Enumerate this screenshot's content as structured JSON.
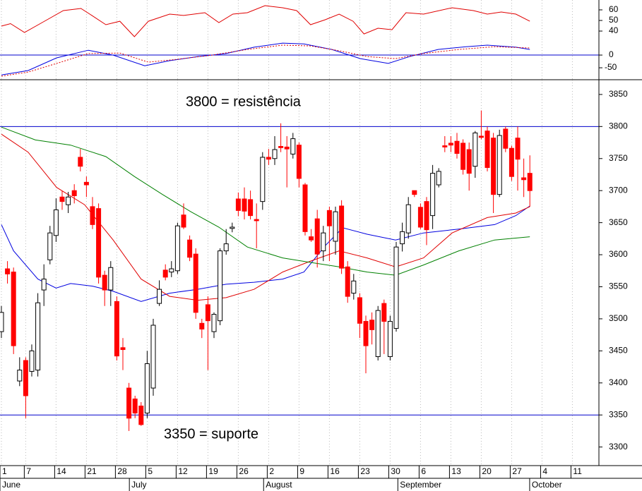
{
  "chart_data": [
    {
      "type": "line",
      "xlim": [
        -0.23,
        98.37
      ],
      "ylim": [
        32.7,
        69.3
      ],
      "yticks": [
        40,
        50,
        60
      ],
      "series": [
        {
          "color": "#e00000",
          "dashed": false,
          "x": [
            0,
            1.5,
            3.8,
            6.7,
            10.2,
            13.1,
            14.9,
            17.2,
            19.5,
            21.9,
            24.2,
            27.7,
            30,
            33.5,
            35.8,
            38.1,
            40.5,
            43.4,
            46.3,
            48.6,
            50.9,
            53.3,
            55.6,
            57.9,
            59.7,
            62,
            64.3,
            66.6,
            69.5,
            74.2,
            77.7,
            80,
            82.3,
            84.7,
            87
          ],
          "values": [
            44.7,
            47,
            38.7,
            48,
            59.3,
            61.3,
            54.7,
            46,
            49.3,
            34.7,
            49.3,
            56,
            54.7,
            57.3,
            48,
            56,
            57.3,
            64,
            62,
            59.3,
            46,
            50.7,
            56,
            49.3,
            37.3,
            42.7,
            41.3,
            57.3,
            56,
            62,
            59.3,
            56,
            58,
            56,
            49.3
          ]
        }
      ]
    },
    {
      "type": "line",
      "xlim": [
        -0.23,
        98.37
      ],
      "ylim": [
        -97,
        64
      ],
      "yticks": [
        -50,
        0
      ],
      "hlines": [
        0
      ],
      "hline_color": "#0000cc",
      "series": [
        {
          "color": "#0000e0",
          "dashed": false,
          "x": [
            0,
            4.4,
            9.1,
            14.3,
            18.4,
            23.6,
            27.7,
            32.3,
            37,
            41.6,
            46.3,
            49.8,
            54.4,
            59.1,
            63.7,
            67.2,
            71.9,
            76.5,
            80,
            84.7,
            87
          ],
          "values": [
            -78,
            -61,
            -11,
            19,
            0,
            -42,
            -22,
            -6,
            6,
            31,
            47,
            44,
            22,
            -14,
            -33,
            -6,
            22,
            33,
            39,
            31,
            22
          ]
        },
        {
          "color": "#e00000",
          "dashed": true,
          "x": [
            0,
            4.4,
            9.1,
            14.3,
            19.5,
            24.2,
            28.8,
            34.7,
            40.5,
            46.3,
            50.9,
            55.6,
            60.2,
            64.9,
            69.5,
            75.3,
            81.2,
            87
          ],
          "values": [
            -83,
            -67,
            -33,
            6,
            8,
            -28,
            -17,
            0,
            22,
            39,
            36,
            17,
            -6,
            -14,
            6,
            22,
            33,
            28
          ]
        }
      ]
    },
    {
      "type": "candlestick",
      "xlim": [
        -0.23,
        98.37
      ],
      "ylim": [
        3271,
        3873
      ],
      "yticks": [
        3300,
        3350,
        3400,
        3450,
        3500,
        3550,
        3600,
        3650,
        3700,
        3750,
        3800,
        3850
      ],
      "xticks": [
        {
          "value": 0,
          "label": "1"
        },
        {
          "value": 4,
          "label": "7"
        },
        {
          "value": 9,
          "label": "14"
        },
        {
          "value": 14,
          "label": "21"
        },
        {
          "value": 19,
          "label": "28"
        },
        {
          "value": 24,
          "label": "5"
        },
        {
          "value": 29,
          "label": "12"
        },
        {
          "value": 34,
          "label": "19"
        },
        {
          "value": 39,
          "label": "26"
        },
        {
          "value": 44,
          "label": "2"
        },
        {
          "value": 49,
          "label": "9"
        },
        {
          "value": 54,
          "label": "16"
        },
        {
          "value": 59,
          "label": "23"
        },
        {
          "value": 64,
          "label": "30"
        },
        {
          "value": 69,
          "label": "6"
        },
        {
          "value": 74,
          "label": "13"
        },
        {
          "value": 79,
          "label": "20"
        },
        {
          "value": 84,
          "label": "27"
        },
        {
          "value": 89,
          "label": "4"
        },
        {
          "value": 94,
          "label": "11"
        }
      ],
      "months": [
        {
          "value": 0,
          "label": "June"
        },
        {
          "value": 21.3,
          "label": "July"
        },
        {
          "value": 43.4,
          "label": "August"
        },
        {
          "value": 65.5,
          "label": "September"
        },
        {
          "value": 87.2,
          "label": "October"
        }
      ],
      "grid": true,
      "up_color": "#ffffff",
      "down_color": "#ff0000",
      "open": [
        3480,
        3578,
        3573,
        3403,
        3435,
        3418,
        3420,
        3545,
        3592,
        3630,
        3690,
        3678,
        3700,
        3752,
        3713,
        3675,
        3672,
        3568,
        3545,
        3527,
        3455,
        3392,
        3375,
        3364,
        3353,
        3392,
        3524,
        3576,
        3573,
        3575,
        3662,
        3623,
        3601,
        3493,
        3522,
        3480,
        3497,
        3606,
        3641,
        3687,
        3687,
        3686,
        3655,
        3683,
        3752,
        3750,
        3769,
        3768,
        3757,
        3771,
        3709,
        3628,
        3656,
        3606,
        3669,
        3621,
        3676,
        3581,
        3540,
        3533,
        3496,
        3498,
        3441,
        3524,
        3441,
        3485,
        3617,
        3634,
        3700,
        3674,
        3683,
        3661,
        3709,
        3770,
        3774,
        3777,
        3774,
        3764,
        3738,
        3785,
        3793,
        3782,
        3694,
        3796,
        3766,
        3782,
        3720,
        3727
      ],
      "high": [
        3520,
        3590,
        3580,
        3440,
        3440,
        3460,
        3540,
        3585,
        3645,
        3688,
        3700,
        3698,
        3710,
        3765,
        3722,
        3690,
        3680,
        3575,
        3590,
        3535,
        3470,
        3400,
        3380,
        3370,
        3450,
        3500,
        3560,
        3585,
        3590,
        3650,
        3680,
        3630,
        3610,
        3500,
        3535,
        3510,
        3610,
        3640,
        3650,
        3697,
        3705,
        3700,
        3680,
        3760,
        3765,
        3785,
        3805,
        3785,
        3790,
        3775,
        3712,
        3640,
        3670,
        3645,
        3675,
        3675,
        3685,
        3590,
        3570,
        3540,
        3505,
        3510,
        3520,
        3530,
        3505,
        3620,
        3650,
        3690,
        3700,
        3680,
        3690,
        3740,
        3735,
        3785,
        3785,
        3790,
        3780,
        3775,
        3793,
        3825,
        3800,
        3790,
        3795,
        3800,
        3770,
        3800,
        3750,
        3755
      ],
      "low": [
        3470,
        3555,
        3445,
        3395,
        3345,
        3410,
        3410,
        3520,
        3585,
        3620,
        3670,
        3665,
        3680,
        3730,
        3690,
        3640,
        3555,
        3520,
        3520,
        3435,
        3420,
        3325,
        3345,
        3333,
        3345,
        3380,
        3520,
        3560,
        3565,
        3570,
        3640,
        3590,
        3500,
        3470,
        3420,
        3470,
        3490,
        3600,
        3635,
        3660,
        3655,
        3655,
        3610,
        3670,
        3740,
        3740,
        3760,
        3705,
        3750,
        3705,
        3630,
        3620,
        3580,
        3590,
        3590,
        3600,
        3570,
        3525,
        3530,
        3470,
        3415,
        3460,
        3435,
        3445,
        3435,
        3480,
        3605,
        3625,
        3690,
        3640,
        3615,
        3640,
        3705,
        3760,
        3760,
        3750,
        3725,
        3700,
        3720,
        3780,
        3730,
        3665,
        3690,
        3760,
        3715,
        3700,
        3690,
        3675
      ],
      "close": [
        3510,
        3570,
        3458,
        3420,
        3380,
        3450,
        3525,
        3562,
        3634,
        3670,
        3683,
        3690,
        3692,
        3738,
        3709,
        3647,
        3565,
        3545,
        3580,
        3442,
        3452,
        3345,
        3353,
        3335,
        3430,
        3490,
        3546,
        3565,
        3578,
        3645,
        3643,
        3596,
        3510,
        3484,
        3497,
        3507,
        3606,
        3617,
        3643,
        3669,
        3668,
        3661,
        3653,
        3752,
        3749,
        3764,
        3767,
        3765,
        3781,
        3719,
        3636,
        3623,
        3601,
        3634,
        3645,
        3667,
        3579,
        3535,
        3559,
        3493,
        3458,
        3483,
        3513,
        3496,
        3496,
        3612,
        3636,
        3678,
        3694,
        3643,
        3639,
        3727,
        3730,
        3768,
        3771,
        3758,
        3733,
        3727,
        3790,
        3783,
        3736,
        3694,
        3786,
        3766,
        3722,
        3749,
        3717,
        3700
      ],
      "series": [
        {
          "color": "#0000e0",
          "x": [
            0,
            2,
            6,
            9,
            11.4,
            15,
            18.4,
            23,
            27.7,
            32.3,
            37,
            41.6,
            46.3,
            49.8,
            53.3,
            56.2,
            60.2,
            64.9,
            69.5,
            75.3,
            81.2,
            84.7,
            87
          ],
          "values": [
            3647,
            3606,
            3562,
            3548,
            3555,
            3551,
            3543,
            3527,
            3540,
            3546,
            3554,
            3557,
            3562,
            3573,
            3614,
            3642,
            3632,
            3623,
            3634,
            3640,
            3647,
            3661,
            3676
          ]
        },
        {
          "color": "#e00000",
          "x": [
            0,
            4.4,
            9.1,
            13.7,
            18.4,
            23,
            27.7,
            32.3,
            37,
            41.6,
            46.3,
            50.9,
            55.6,
            60.2,
            64.9,
            69.5,
            74.2,
            80,
            84.7,
            87
          ],
          "values": [
            3788,
            3760,
            3705,
            3678,
            3623,
            3562,
            3535,
            3529,
            3533,
            3546,
            3573,
            3590,
            3606,
            3595,
            3581,
            3595,
            3634,
            3658,
            3665,
            3675
          ]
        },
        {
          "color": "#008000",
          "x": [
            0,
            5.6,
            11.4,
            17.2,
            21.9,
            26.5,
            31.2,
            35.8,
            40.5,
            46.3,
            50.9,
            55.6,
            60.2,
            64.9,
            69.5,
            75.3,
            81.2,
            87
          ],
          "values": [
            3799,
            3779,
            3771,
            3753,
            3722,
            3694,
            3667,
            3643,
            3612,
            3595,
            3588,
            3581,
            3573,
            3568,
            3584,
            3606,
            3623,
            3628
          ]
        }
      ],
      "hlines": [
        3800,
        3350
      ],
      "hline_color": "#0000cc",
      "annotations": [
        {
          "text": "3800 = resistência"
        },
        {
          "text": "3350 = suporte"
        }
      ],
      "annotation_color": "#0000dd"
    }
  ]
}
